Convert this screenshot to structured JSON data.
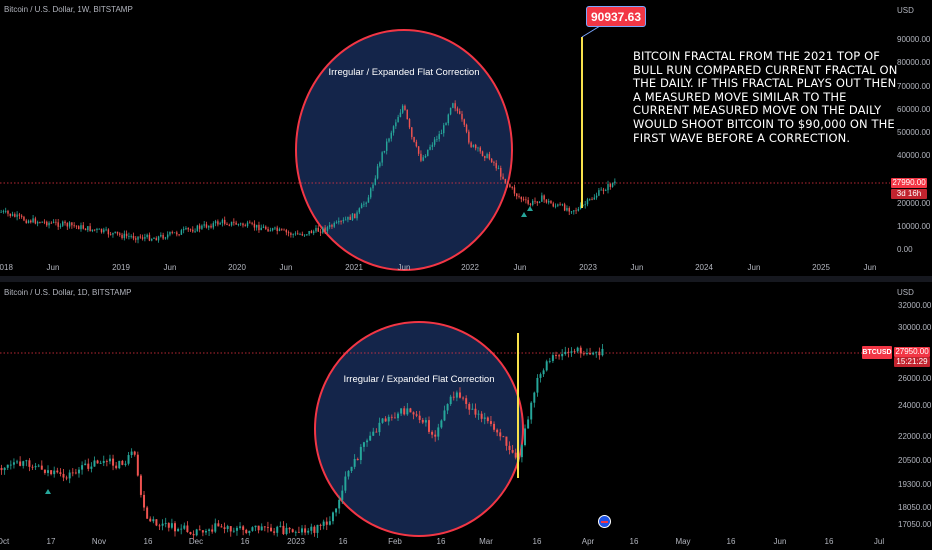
{
  "top_pane": {
    "title": "Bitcoin / U.S. Dollar, 1W, BITSTAMP",
    "axis_unit": "USD",
    "y_ticks": [
      "90000.00",
      "80000.00",
      "70000.00",
      "60000.00",
      "50000.00",
      "40000.00",
      "30000.00",
      "20000.00",
      "10000.00",
      "0.00"
    ],
    "x_ticks": [
      "2018",
      "Jun",
      "2019",
      "Jun",
      "2020",
      "Jun",
      "2021",
      "Jun",
      "2022",
      "Jun",
      "2023",
      "Jun",
      "2024",
      "Jun",
      "2025",
      "Jun"
    ],
    "pattern_label": "Irregular / Expanded Flat Correction",
    "target_callout": "90937.63",
    "last_price": "27990.00",
    "countdown": "3d 16h",
    "annotation": "BITCOIN FRACTAL FROM THE 2021 TOP OF BULL RUN COMPARED CURRENT FRACTAL ON THE DAILY. IF THIS FRACTAL PLAYS OUT THEN A MEASURED MOVE SIMILAR TO THE CURRENT MEASURED MOVE ON THE DAILY WOULD SHOOT BITCOIN TO $90,000 ON THE FIRST WAVE BEFORE A CORRECTION."
  },
  "bottom_pane": {
    "title": "Bitcoin / U.S. Dollar, 1D, BITSTAMP",
    "axis_unit": "USD",
    "y_ticks": [
      "32000.00",
      "30000.00",
      "26000.00",
      "24000.00",
      "22000.00",
      "20500.00",
      "19300.00",
      "18050.00",
      "17050.00"
    ],
    "x_ticks": [
      "Oct",
      "17",
      "Nov",
      "16",
      "Dec",
      "16",
      "2023",
      "16",
      "Feb",
      "16",
      "Mar",
      "16",
      "Apr",
      "16",
      "May",
      "16",
      "Jun",
      "16",
      "Jul"
    ],
    "pattern_label": "Irregular / Expanded Flat Correction",
    "symbol": "BTCUSD",
    "last_price": "27950.00",
    "countdown": "15:21:29"
  },
  "colors": {
    "background": "#000000",
    "up_candle": "#26a69a",
    "down_candle": "#ef5350",
    "ellipse_stroke": "#f23645",
    "ellipse_fill": "#14254a",
    "measure_line": "#f7e14b",
    "price_line": "#f23645"
  },
  "chart_data": [
    {
      "type": "candlestick",
      "title": "Bitcoin / U.S. Dollar, 1W, BITSTAMP",
      "ylim": [
        0,
        95000
      ],
      "x": [
        "2018",
        "2019",
        "2020",
        "2021",
        "2022",
        "2023"
      ],
      "close": [
        9000,
        3500,
        7200,
        33000,
        46000,
        16500
      ],
      "target": 90937.63,
      "last": 27990
    },
    {
      "type": "candlestick",
      "title": "Bitcoin / U.S. Dollar, 1D, BITSTAMP",
      "ylim": [
        16800,
        32500
      ],
      "x": [
        "Oct",
        "Nov",
        "Dec",
        "2023",
        "Feb",
        "Mar",
        "Apr"
      ],
      "close": [
        19500,
        20800,
        17000,
        16600,
        23300,
        22300,
        27950
      ],
      "last": 27950
    }
  ]
}
